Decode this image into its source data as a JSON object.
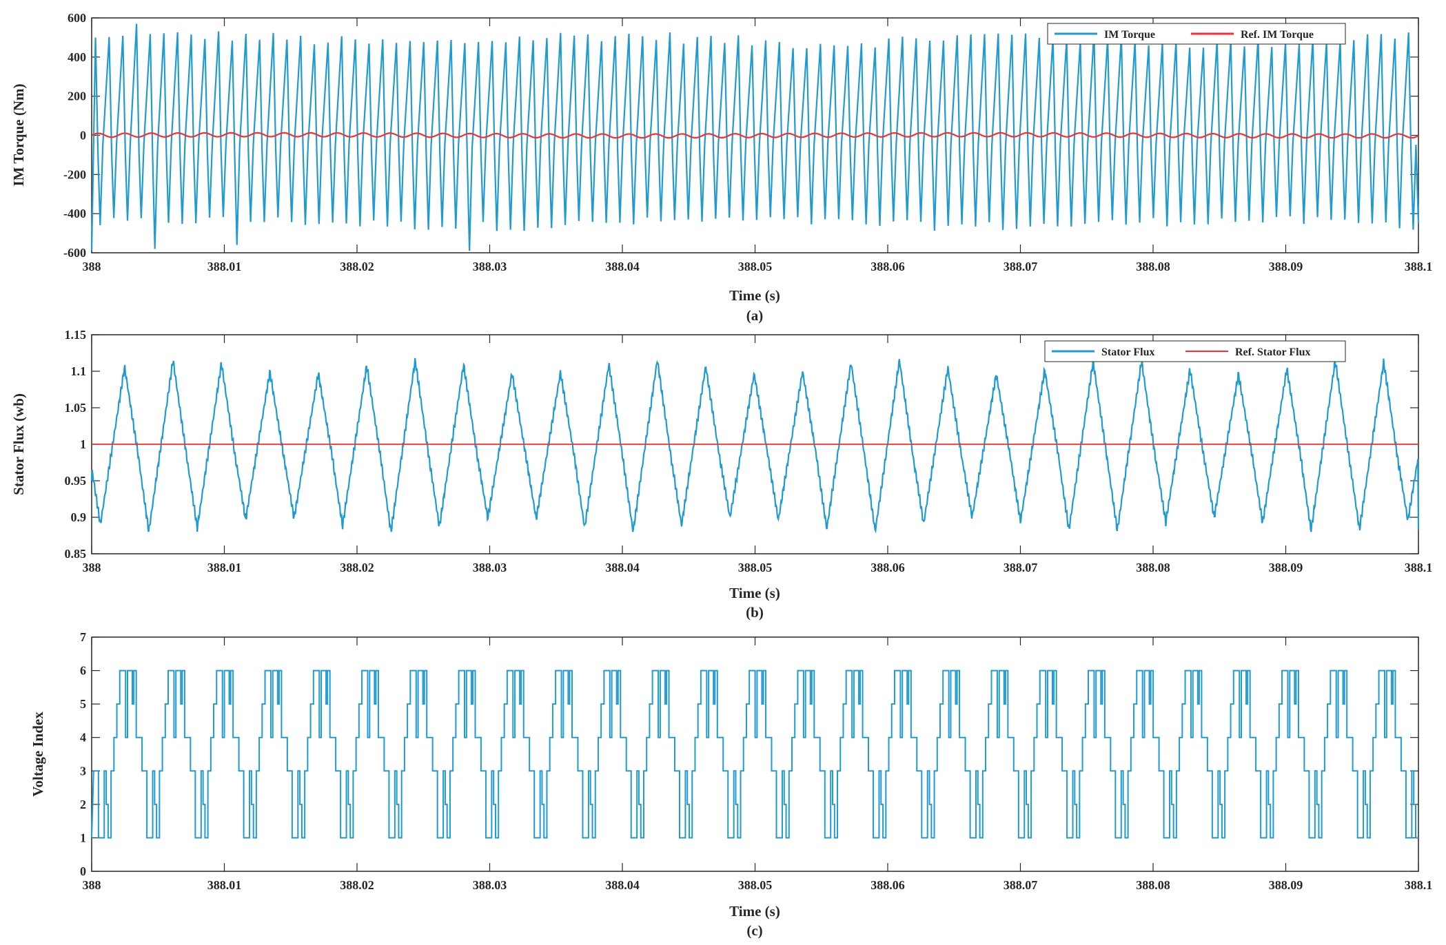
{
  "colors": {
    "series_blue": "#1f9bd1",
    "series_red": "#ff2a2a",
    "axis": "#262626",
    "background": "#ffffff"
  },
  "chart_data": [
    {
      "type": "line",
      "caption": "(a)",
      "xlabel": "Time (s)",
      "ylabel": "IM Torque (Nm)",
      "xlim": [
        388,
        388.1
      ],
      "ylim": [
        -600,
        600
      ],
      "x_ticks": [
        "388",
        "388.01",
        "388.02",
        "388.03",
        "388.04",
        "388.05",
        "388.06",
        "388.07",
        "388.08",
        "388.09",
        "388.1"
      ],
      "y_ticks": [
        "-600",
        "-400",
        "-200",
        "0",
        "200",
        "400",
        "600"
      ],
      "legend_position": "top-right",
      "series": [
        {
          "name": "IM Torque",
          "color": "#1f9bd1",
          "shape": "sawtooth",
          "peak_count": 97,
          "max": 570,
          "min": -590,
          "typical_max": 490,
          "typical_min": -450
        },
        {
          "name": "Ref. IM Torque",
          "color": "#ff2a2a",
          "shape": "sinusoid",
          "center": 0,
          "amplitude": 10,
          "cycles": 50
        }
      ]
    },
    {
      "type": "line",
      "caption": "(b)",
      "xlabel": "Time (s)",
      "ylabel": "Stator Flux (wb)",
      "xlim": [
        388,
        388.1
      ],
      "ylim": [
        0.85,
        1.15
      ],
      "x_ticks": [
        "388",
        "388.01",
        "388.02",
        "388.03",
        "388.04",
        "388.05",
        "388.06",
        "388.07",
        "388.08",
        "388.09",
        "388.1"
      ],
      "y_ticks": [
        "0.85",
        "0.9",
        "0.95",
        "1",
        "1.05",
        "1.1",
        "1.15"
      ],
      "legend_position": "top-right",
      "series": [
        {
          "name": "Stator Flux",
          "color": "#1f9bd1",
          "shape": "triangle",
          "period_s": 0.00365,
          "start_value": 0.95,
          "end_value": 0.883,
          "max": 1.118,
          "min": 0.88
        },
        {
          "name": "Ref. Stator Flux",
          "color": "#ff2a2a",
          "shape": "constant",
          "value": 1
        }
      ]
    },
    {
      "type": "line",
      "caption": "(c)",
      "xlabel": "Time (s)",
      "ylabel": "Voltage Index",
      "xlim": [
        388,
        388.1
      ],
      "ylim": [
        0,
        7
      ],
      "x_ticks": [
        "388",
        "388.01",
        "388.02",
        "388.03",
        "388.04",
        "388.05",
        "388.06",
        "388.07",
        "388.08",
        "388.09",
        "388.1"
      ],
      "y_ticks": [
        "0",
        "1",
        "2",
        "3",
        "4",
        "5",
        "6",
        "7"
      ],
      "series": [
        {
          "color": "#1f9bd1",
          "shape": "step",
          "level_values": [
            1,
            2,
            3,
            4,
            5,
            6
          ],
          "period_s": 0.00365
        }
      ]
    }
  ]
}
